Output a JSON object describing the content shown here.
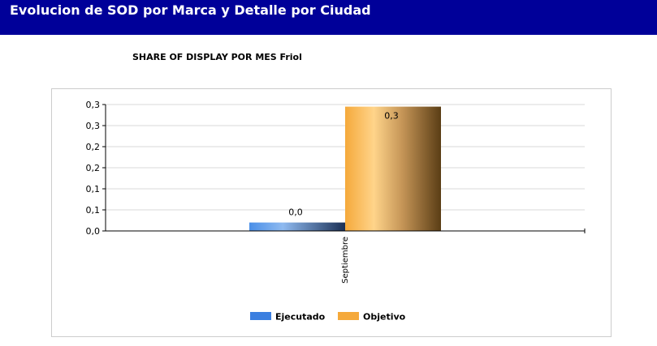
{
  "header": {
    "title": "Evolucion de SOD por Marca y Detalle por Ciudad"
  },
  "chart_data": {
    "type": "bar",
    "title": "SHARE OF DISPLAY POR MES Friol",
    "xlabel": "",
    "ylabel": "",
    "categories": [
      "Septiembre"
    ],
    "series": [
      {
        "name": "Ejecutado",
        "values": [
          0.02
        ],
        "label": "0,0",
        "color": "#3b7fe0"
      },
      {
        "name": "Objetivo",
        "values": [
          0.295
        ],
        "label": "0,3",
        "color": "#f5a93b"
      }
    ],
    "ylim": [
      0,
      0.3
    ],
    "yticks": [
      {
        "value": 0.0,
        "label": "0,0"
      },
      {
        "value": 0.05,
        "label": "0,1"
      },
      {
        "value": 0.1,
        "label": "0,1"
      },
      {
        "value": 0.15,
        "label": "0,2"
      },
      {
        "value": 0.2,
        "label": "0,2"
      },
      {
        "value": 0.25,
        "label": "0,3"
      },
      {
        "value": 0.3,
        "label": "0,3"
      }
    ],
    "grid": true,
    "legend": "bottom"
  }
}
